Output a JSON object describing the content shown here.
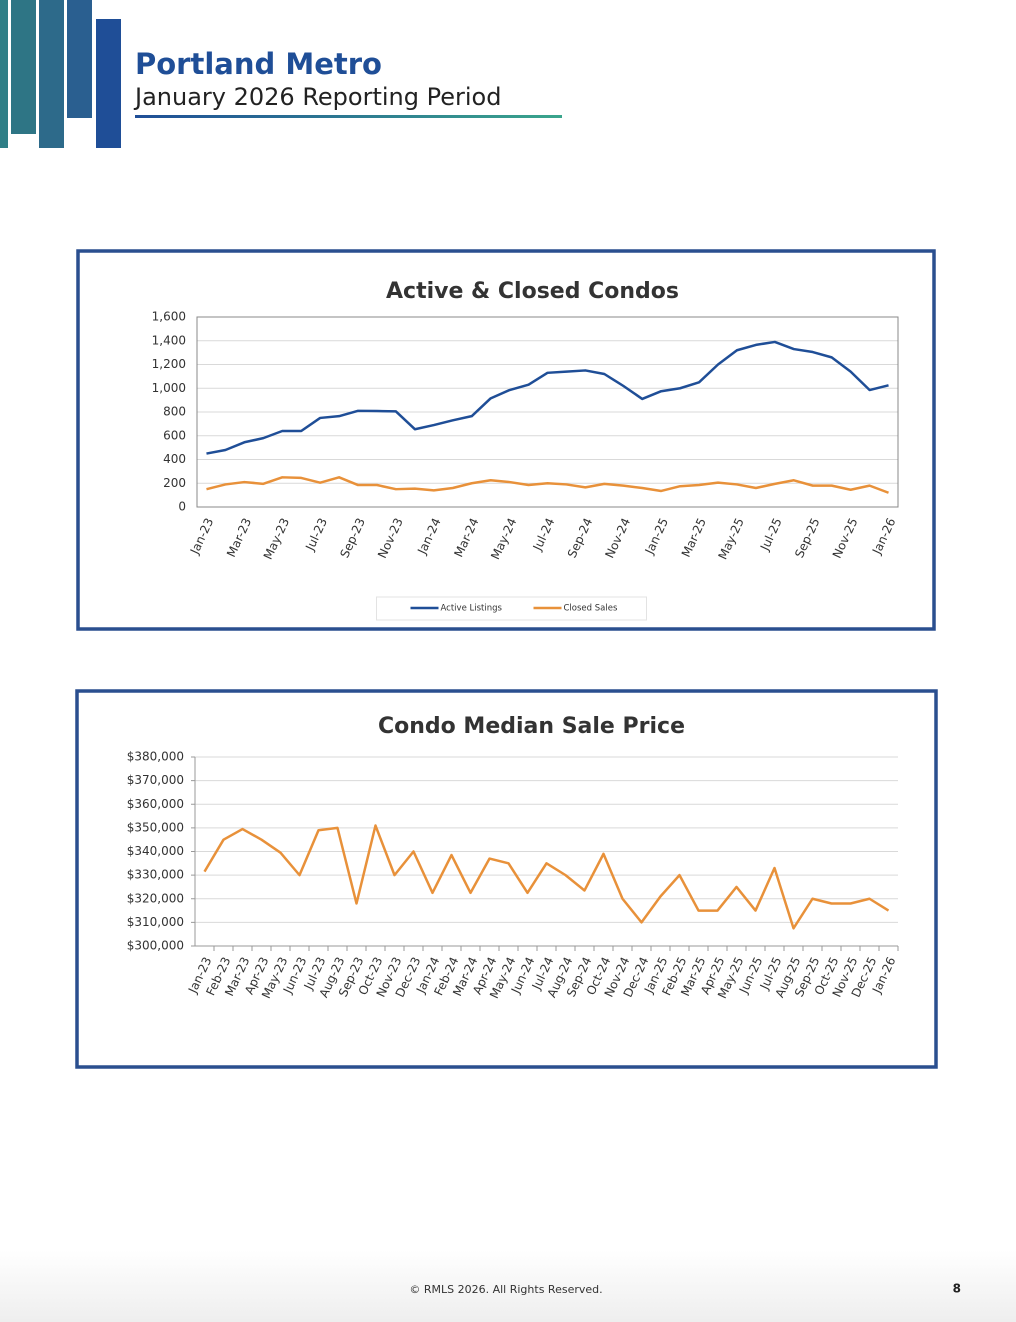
{
  "header": {
    "title": "Portland Metro",
    "subtitle": "January 2026 Reporting Period"
  },
  "chart_data": [
    {
      "type": "line",
      "title": "Active & Closed Condos",
      "categories": [
        "Jan-23",
        null,
        "Mar-23",
        null,
        "May-23",
        null,
        "Jul-23",
        null,
        "Sep-23",
        null,
        "Nov-23",
        null,
        "Jan-24",
        null,
        "Mar-24",
        null,
        "May-24",
        null,
        "Jul-24",
        null,
        "Sep-24",
        null,
        "Nov-24",
        null,
        "Jan-25",
        null,
        "Mar-25",
        null,
        "May-25",
        null,
        "Jul-25",
        null,
        "Sep-25",
        null,
        "Nov-25",
        null,
        "Jan-26"
      ],
      "series": [
        {
          "name": "Active Listings",
          "color": "#1f4e97",
          "values": [
            450,
            480,
            545,
            580,
            640,
            640,
            750,
            765,
            810,
            808,
            805,
            655,
            690,
            730,
            765,
            915,
            985,
            1030,
            1130,
            1140,
            1150,
            1120,
            1020,
            910,
            975,
            1000,
            1050,
            1200,
            1320,
            1365,
            1390,
            1330,
            1305,
            1260,
            1140,
            985,
            1025
          ]
        },
        {
          "name": "Closed Sales",
          "color": "#e8913a",
          "values": [
            150,
            190,
            210,
            195,
            250,
            245,
            205,
            250,
            185,
            185,
            150,
            155,
            140,
            160,
            200,
            225,
            210,
            185,
            200,
            190,
            165,
            195,
            180,
            160,
            135,
            175,
            185,
            205,
            190,
            160,
            195,
            225,
            180,
            180,
            145,
            180,
            120
          ]
        }
      ],
      "ylim": [
        0,
        1600
      ],
      "yticks": [
        0,
        200,
        400,
        600,
        800,
        {
          "value": 1000,
          "label": "1,000"
        },
        {
          "value": 1200,
          "label": "1,200"
        },
        {
          "value": 1400,
          "label": "1,400"
        },
        {
          "value": 1600,
          "label": "1,600"
        }
      ],
      "grid": true,
      "legend": "bottom"
    },
    {
      "type": "line",
      "title": "Condo Median Sale Price",
      "categories": [
        "Jan-23",
        "Feb-23",
        "Mar-23",
        "Apr-23",
        "May-23",
        "Jun-23",
        "Jul-23",
        "Aug-23",
        "Sep-23",
        "Oct-23",
        "Nov-23",
        "Dec-23",
        "Jan-24",
        "Feb-24",
        "Mar-24",
        "Apr-24",
        "May-24",
        "Jun-24",
        "Jul-24",
        "Aug-24",
        "Sep-24",
        "Oct-24",
        "Nov-24",
        "Dec-24",
        "Jan-25",
        "Feb-25",
        "Mar-25",
        "Apr-25",
        "May-25",
        "Jun-25",
        "Jul-25",
        "Aug-25",
        "Sep-25",
        "Oct-25",
        "Nov-25",
        "Dec-25",
        "Jan-26"
      ],
      "values": [
        331500,
        345000,
        349500,
        345000,
        339500,
        330000,
        349000,
        350000,
        318000,
        351000,
        330000,
        340000,
        322500,
        338500,
        322500,
        337000,
        335000,
        322500,
        335000,
        330000,
        323500,
        339000,
        320000,
        310000,
        321000,
        330000,
        315000,
        315000,
        325000,
        315000,
        333000,
        307500,
        320000,
        318000,
        318000,
        320000,
        315000
      ],
      "color": "#e8913a",
      "ylim": [
        300000,
        380000
      ],
      "yticks": [
        {
          "value": 300000,
          "label": "$300,000"
        },
        {
          "value": 310000,
          "label": "$310,000"
        },
        {
          "value": 320000,
          "label": "$320,000"
        },
        {
          "value": 330000,
          "label": "$330,000"
        },
        {
          "value": 340000,
          "label": "$340,000"
        },
        {
          "value": 350000,
          "label": "$350,000"
        },
        {
          "value": 360000,
          "label": "$360,000"
        },
        {
          "value": 370000,
          "label": "$370,000"
        },
        {
          "value": 380000,
          "label": "$380,000"
        }
      ],
      "grid": true
    }
  ],
  "footer": {
    "copyright": "© RMLS 2026. All Rights Reserved.",
    "page": 8
  }
}
